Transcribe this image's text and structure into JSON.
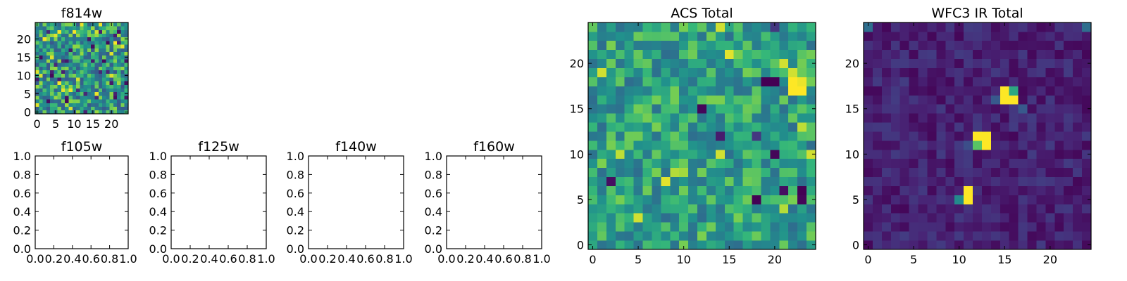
{
  "chart_data": [
    {
      "type": "heatmap",
      "title": "f814w",
      "xlim": [
        -0.5,
        24.5
      ],
      "ylim": [
        -0.5,
        24.5
      ],
      "xticks": [
        0,
        5,
        10,
        15,
        20
      ],
      "yticks": [
        0,
        5,
        10,
        15,
        20
      ],
      "tick_labels_x": [
        "0",
        "5",
        "10",
        "15",
        "20"
      ],
      "tick_labels_y": [
        "0",
        "5",
        "10",
        "15",
        "20"
      ],
      "grid_size": 25,
      "colormap": "viridis",
      "description_of_values": "noise field, pixel values mostly mid-to-high (green)",
      "seed": 814
    },
    {
      "type": "heatmap",
      "title": "f105w",
      "xlim": [
        0.0,
        1.0
      ],
      "ylim": [
        0.0,
        1.0
      ],
      "tick_labels_x": [
        "0.0",
        "0.2",
        "0.4",
        "0.6",
        "0.8",
        "1.0"
      ],
      "tick_labels_y": [
        "0.0",
        "0.2",
        "0.4",
        "0.6",
        "0.8",
        "1.0"
      ],
      "empty": true
    },
    {
      "type": "heatmap",
      "title": "f125w",
      "xlim": [
        0.0,
        1.0
      ],
      "ylim": [
        0.0,
        1.0
      ],
      "tick_labels_x": [
        "0.0",
        "0.2",
        "0.4",
        "0.6",
        "0.8",
        "1.0"
      ],
      "tick_labels_y": [
        "0.0",
        "0.2",
        "0.4",
        "0.6",
        "0.8",
        "1.0"
      ],
      "empty": true
    },
    {
      "type": "heatmap",
      "title": "f140w",
      "xlim": [
        0.0,
        1.0
      ],
      "ylim": [
        0.0,
        1.0
      ],
      "tick_labels_x": [
        "0.0",
        "0.2",
        "0.4",
        "0.6",
        "0.8",
        "1.0"
      ],
      "tick_labels_y": [
        "0.0",
        "0.2",
        "0.4",
        "0.6",
        "0.8",
        "1.0"
      ],
      "empty": true
    },
    {
      "type": "heatmap",
      "title": "f160w",
      "xlim": [
        0.0,
        1.0
      ],
      "ylim": [
        0.0,
        1.0
      ],
      "tick_labels_x": [
        "0.0",
        "0.2",
        "0.4",
        "0.6",
        "0.8",
        "1.0"
      ],
      "tick_labels_y": [
        "0.0",
        "0.2",
        "0.4",
        "0.6",
        "0.8",
        "1.0"
      ],
      "empty": true
    },
    {
      "type": "heatmap",
      "title": "ACS Total",
      "xlim": [
        -0.5,
        24.5
      ],
      "ylim": [
        -0.5,
        24.5
      ],
      "tick_labels_x": [
        "0",
        "5",
        "10",
        "15",
        "20"
      ],
      "tick_labels_y": [
        "0",
        "5",
        "10",
        "15",
        "20"
      ],
      "grid_size": 25,
      "colormap": "viridis",
      "base_range": [
        0.45,
        0.85
      ],
      "hot_spots": [
        {
          "x": 22,
          "y": 17,
          "v": 1.0
        },
        {
          "x": 23,
          "y": 17,
          "v": 1.0
        },
        {
          "x": 22,
          "y": 18,
          "v": 1.0
        },
        {
          "x": 23,
          "y": 18,
          "v": 0.98
        },
        {
          "x": 22,
          "y": 19,
          "v": 0.95
        },
        {
          "x": 1,
          "y": 19,
          "v": 0.95
        },
        {
          "x": 14,
          "y": 24,
          "v": 0.95
        },
        {
          "x": 15,
          "y": 21,
          "v": 0.97
        },
        {
          "x": 14,
          "y": 10,
          "v": 0.95
        },
        {
          "x": 8,
          "y": 7,
          "v": 0.97
        },
        {
          "x": 3,
          "y": 10,
          "v": 0.93
        },
        {
          "x": 24,
          "y": 10,
          "v": 0.95
        },
        {
          "x": 5,
          "y": 3,
          "v": 0.95
        },
        {
          "x": 21,
          "y": 4,
          "v": 0.92
        },
        {
          "x": 21,
          "y": 20,
          "v": 0.95
        },
        {
          "x": 23,
          "y": 13,
          "v": 0.93
        },
        {
          "x": 9,
          "y": 8,
          "v": 0.92
        },
        {
          "x": 10,
          "y": 8,
          "v": 0.9
        }
      ],
      "cold_spots": [
        {
          "x": 19,
          "y": 18,
          "v": 0.0
        },
        {
          "x": 20,
          "y": 18,
          "v": 0.0
        },
        {
          "x": 20,
          "y": 10,
          "v": 0.02
        },
        {
          "x": 18,
          "y": 5,
          "v": 0.0
        },
        {
          "x": 23,
          "y": 6,
          "v": 0.0
        },
        {
          "x": 21,
          "y": 6,
          "v": 0.05
        },
        {
          "x": 23,
          "y": 5,
          "v": 0.02
        },
        {
          "x": 12,
          "y": 15,
          "v": 0.02
        },
        {
          "x": 14,
          "y": 12,
          "v": 0.1
        },
        {
          "x": 2,
          "y": 7,
          "v": 0.05
        },
        {
          "x": 20,
          "y": 24,
          "v": 0.2
        },
        {
          "x": 18,
          "y": 12,
          "v": 0.2
        }
      ],
      "seed": 1001
    },
    {
      "type": "heatmap",
      "title": "WFC3 IR Total",
      "xlim": [
        -0.5,
        24.5
      ],
      "ylim": [
        -0.5,
        24.5
      ],
      "tick_labels_x": [
        "0",
        "5",
        "10",
        "15",
        "20"
      ],
      "tick_labels_y": [
        "0",
        "5",
        "10",
        "15",
        "20"
      ],
      "grid_size": 25,
      "colormap": "viridis",
      "base_range": [
        0.02,
        0.22
      ],
      "hot_spots": [
        {
          "x": 15,
          "y": 17,
          "v": 1.0
        },
        {
          "x": 15,
          "y": 16,
          "v": 1.0
        },
        {
          "x": 16,
          "y": 16,
          "v": 1.0
        },
        {
          "x": 16,
          "y": 17,
          "v": 0.7
        },
        {
          "x": 12,
          "y": 12,
          "v": 1.0
        },
        {
          "x": 13,
          "y": 12,
          "v": 1.0
        },
        {
          "x": 12,
          "y": 11,
          "v": 0.8
        },
        {
          "x": 13,
          "y": 11,
          "v": 1.0
        },
        {
          "x": 11,
          "y": 6,
          "v": 1.0
        },
        {
          "x": 11,
          "y": 5,
          "v": 1.0
        },
        {
          "x": 10,
          "y": 5,
          "v": 0.6
        },
        {
          "x": 14,
          "y": 16,
          "v": 0.35
        },
        {
          "x": 17,
          "y": 15,
          "v": 0.35
        },
        {
          "x": 11,
          "y": 11,
          "v": 0.3
        },
        {
          "x": 24,
          "y": 24,
          "v": 0.45
        },
        {
          "x": 0,
          "y": 24,
          "v": 0.45
        }
      ],
      "cold_spots": [],
      "seed": 2002
    }
  ]
}
